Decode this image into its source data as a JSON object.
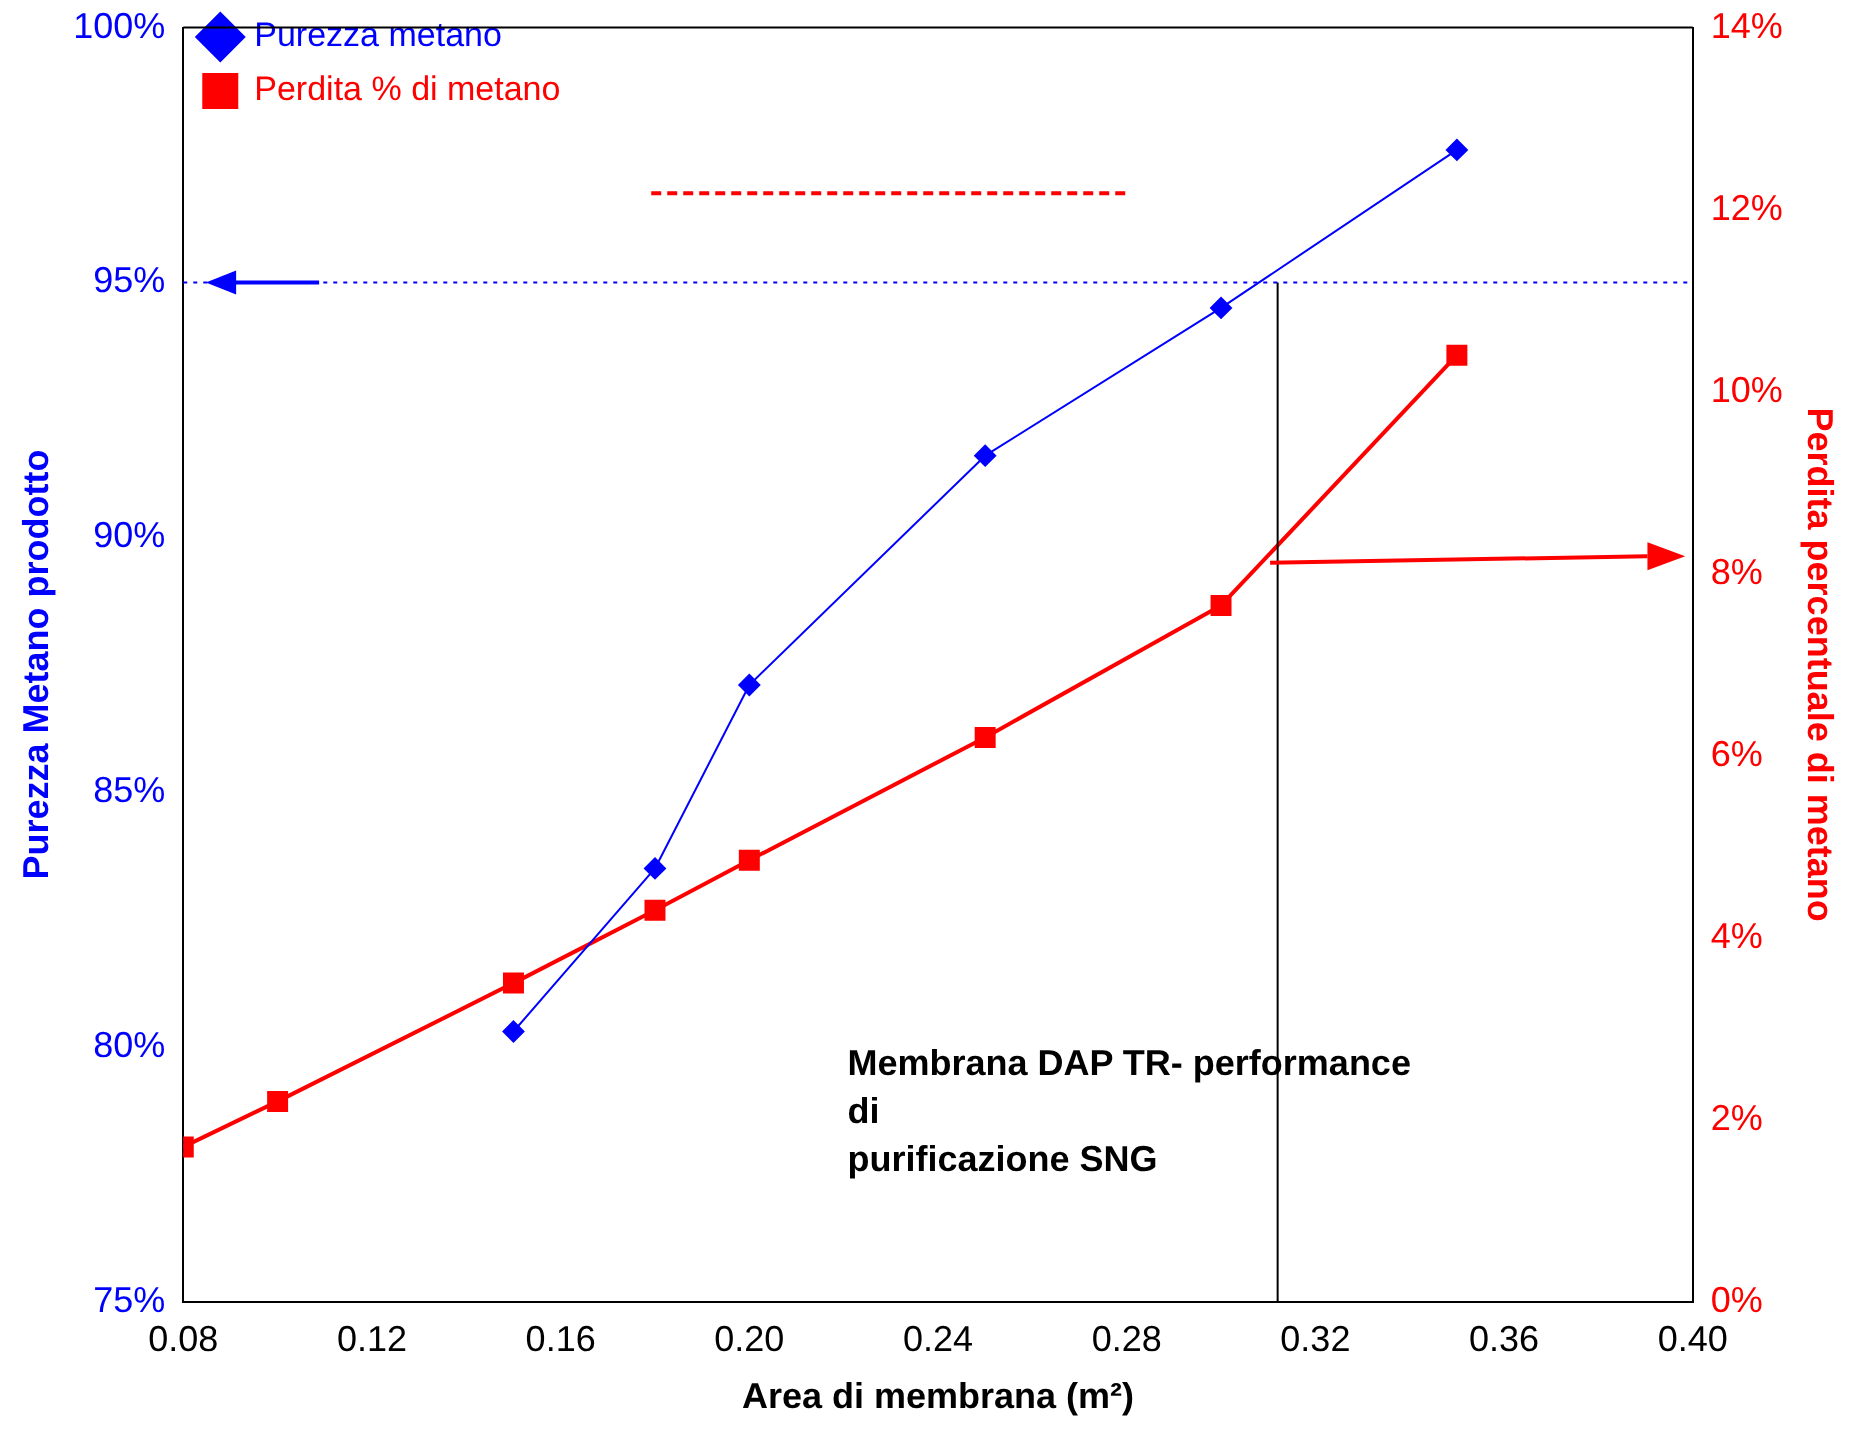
{
  "chart_data": {
    "type": "line",
    "xlabel": "Area di membrana (m²)",
    "ylabel": "Purezza Metano prodotto",
    "y2label": "Perdita percentuale di metano",
    "annotations": [
      "Membrana DAP TR- performance\ndi\npurificazione SNG"
    ],
    "series": [
      {
        "name": "Purezza metano",
        "color": "#0000ff",
        "marker": "diamond",
        "x": [
          0.15,
          0.18,
          0.2,
          0.25,
          0.3,
          0.35
        ],
        "values": [
          80.3,
          83.5,
          87.1,
          91.6,
          94.5,
          97.6
        ]
      },
      {
        "name": "Perdita % di metano",
        "color": "#ff0000",
        "marker": "square",
        "axis": "y2",
        "x": [
          0.08,
          0.1,
          0.15,
          0.18,
          0.2,
          0.25,
          0.3,
          0.35
        ],
        "values": [
          1.7,
          2.2,
          3.5,
          4.3,
          4.85,
          6.2,
          7.65,
          10.4
        ]
      }
    ],
    "xlim": [
      0.08,
      0.4
    ],
    "xticks": [
      {
        "value": 0.08,
        "label": "0.08"
      },
      {
        "value": 0.12,
        "label": "0.12"
      },
      {
        "value": 0.16,
        "label": "0.16"
      },
      {
        "value": 0.2,
        "label": "0.20"
      },
      {
        "value": 0.24,
        "label": "0.24"
      },
      {
        "value": 0.28,
        "label": "0.28"
      },
      {
        "value": 0.32,
        "label": "0.32"
      },
      {
        "value": 0.36,
        "label": "0.36"
      },
      {
        "value": 0.4,
        "label": "0.40"
      }
    ],
    "ylim": [
      75,
      100
    ],
    "yticks": [
      {
        "value": 75,
        "label": "75%"
      },
      {
        "value": 80,
        "label": "80%"
      },
      {
        "value": 85,
        "label": "85%"
      },
      {
        "value": 90,
        "label": "90%"
      },
      {
        "value": 95,
        "label": "95%"
      },
      {
        "value": 100,
        "label": "100%"
      }
    ],
    "y2lim": [
      0,
      14
    ],
    "y2ticks": [
      {
        "value": 0,
        "label": "0%"
      },
      {
        "value": 2,
        "label": "2%"
      },
      {
        "value": 4,
        "label": "4%"
      },
      {
        "value": 6,
        "label": "6%"
      },
      {
        "value": 8,
        "label": "8%"
      },
      {
        "value": 10,
        "label": "10%"
      },
      {
        "value": 12,
        "label": "12%"
      },
      {
        "value": 14,
        "label": "14%"
      }
    ],
    "ref_lines": [
      {
        "axis": "y",
        "value": 95,
        "color": "#0000ff",
        "line_style": "dotted"
      },
      {
        "axis": "x",
        "value": 0.312,
        "color": "#000000"
      }
    ],
    "grid": false,
    "legend": "top left"
  }
}
